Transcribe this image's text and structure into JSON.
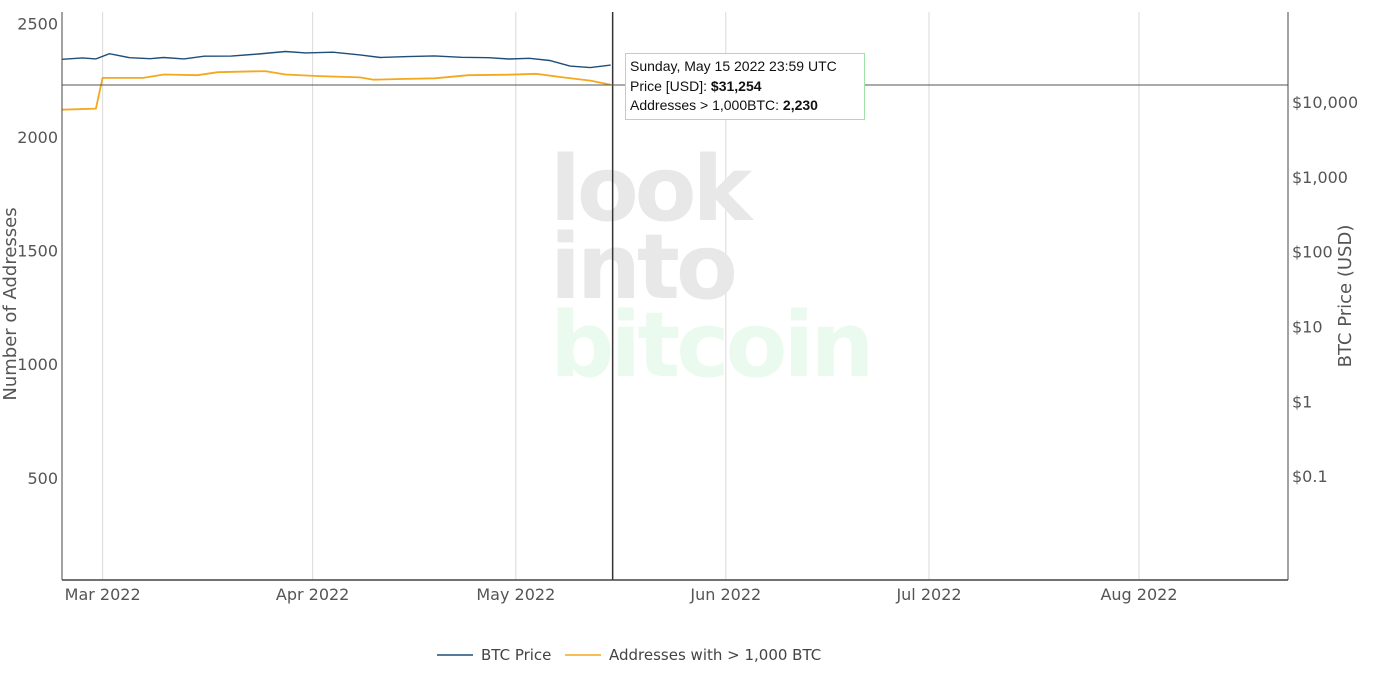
{
  "chart_data": {
    "type": "line",
    "title": "",
    "x_tick_labels": [
      "Mar 2022",
      "Apr 2022",
      "May 2022",
      "Jun 2022",
      "Jul 2022",
      "Aug 2022"
    ],
    "x_range": [
      "2022-02-23",
      "2022-08-23"
    ],
    "y_left": {
      "label": "Number of Addresses",
      "range": [
        50,
        2550
      ],
      "ticks": [
        500,
        1000,
        1500,
        2000,
        2500
      ],
      "tick_labels": [
        "500",
        "1000",
        "1500",
        "2000",
        "2500"
      ]
    },
    "y_right": {
      "label": "BTC Price (USD)",
      "scale": "log",
      "range": [
        0.0041,
        160000
      ],
      "ticks": [
        0.1,
        1,
        10,
        100,
        1000,
        10000
      ],
      "tick_labels": [
        "$0.1",
        "$1",
        "$10",
        "$100",
        "$1,000",
        "$10,000"
      ]
    },
    "grid": true,
    "legend_position": "bottom-center",
    "series": [
      {
        "name": "BTC Price",
        "axis": "right",
        "color": "#1f4e79",
        "points": [
          [
            "2022-02-23",
            37300
          ],
          [
            "2022-02-26",
            39000
          ],
          [
            "2022-02-28",
            37800
          ],
          [
            "2022-03-02",
            44300
          ],
          [
            "2022-03-05",
            39200
          ],
          [
            "2022-03-08",
            38000
          ],
          [
            "2022-03-10",
            39400
          ],
          [
            "2022-03-13",
            37800
          ],
          [
            "2022-03-16",
            41000
          ],
          [
            "2022-03-20",
            41200
          ],
          [
            "2022-03-24",
            44000
          ],
          [
            "2022-03-28",
            47400
          ],
          [
            "2022-03-31",
            45500
          ],
          [
            "2022-04-04",
            46500
          ],
          [
            "2022-04-08",
            42700
          ],
          [
            "2022-04-11",
            39500
          ],
          [
            "2022-04-15",
            40500
          ],
          [
            "2022-04-19",
            41500
          ],
          [
            "2022-04-23",
            39700
          ],
          [
            "2022-04-27",
            39200
          ],
          [
            "2022-04-30",
            37700
          ],
          [
            "2022-05-03",
            38500
          ],
          [
            "2022-05-06",
            36000
          ],
          [
            "2022-05-09",
            30300
          ],
          [
            "2022-05-12",
            28900
          ],
          [
            "2022-05-15",
            31254
          ]
        ]
      },
      {
        "name": "Addresses with > 1,000 BTC",
        "axis": "left",
        "color": "#f4a81d",
        "points": [
          [
            "2022-02-23",
            2120
          ],
          [
            "2022-02-28",
            2125
          ],
          [
            "2022-02-29",
            2260
          ],
          [
            "2022-03-07",
            2260
          ],
          [
            "2022-03-10",
            2275
          ],
          [
            "2022-03-15",
            2272
          ],
          [
            "2022-03-18",
            2285
          ],
          [
            "2022-03-25",
            2290
          ],
          [
            "2022-03-28",
            2275
          ],
          [
            "2022-04-02",
            2268
          ],
          [
            "2022-04-08",
            2262
          ],
          [
            "2022-04-10",
            2252
          ],
          [
            "2022-04-14",
            2255
          ],
          [
            "2022-04-19",
            2258
          ],
          [
            "2022-04-24",
            2272
          ],
          [
            "2022-04-30",
            2274
          ],
          [
            "2022-05-04",
            2278
          ],
          [
            "2022-05-08",
            2262
          ],
          [
            "2022-05-12",
            2248
          ],
          [
            "2022-05-15",
            2230
          ]
        ]
      }
    ],
    "hover": {
      "x": "2022-05-15"
    },
    "tooltip": {
      "date": "Sunday, May 15 2022 23:59 UTC",
      "price_label": "Price [USD]:",
      "price_value": "$31,254",
      "addresses_label": "Addresses > 1,000BTC:",
      "addresses_value": "2,230"
    },
    "watermark": [
      "look",
      "into",
      "bitcoin"
    ]
  }
}
